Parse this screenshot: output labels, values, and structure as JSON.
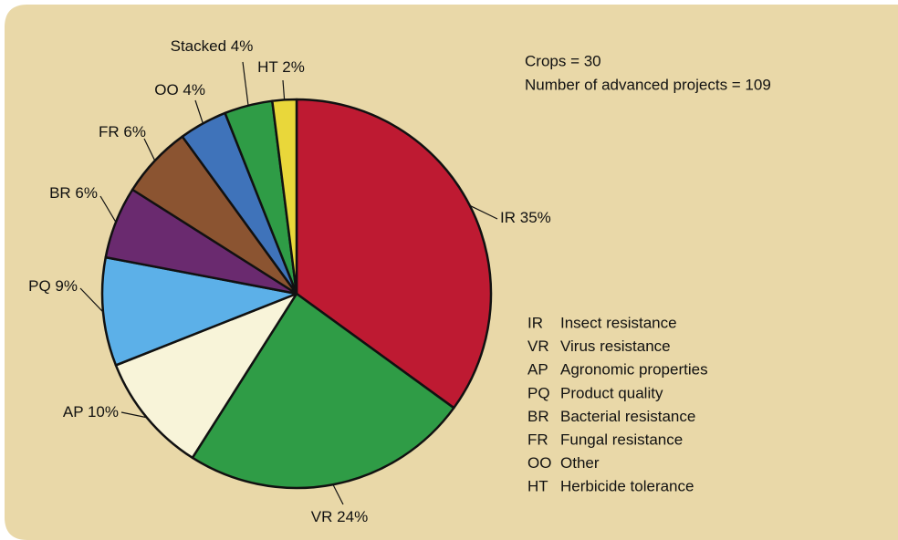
{
  "chart_data": {
    "type": "pie",
    "categories": [
      "IR",
      "VR",
      "AP",
      "PQ",
      "BR",
      "FR",
      "OO",
      "Stacked",
      "HT"
    ],
    "values": [
      35,
      24,
      10,
      9,
      6,
      6,
      4,
      4,
      2
    ],
    "value_labels": [
      "35%",
      "24%",
      "10%",
      "9%",
      "6%",
      "6%",
      "4%",
      "4%",
      "2%"
    ],
    "colors": [
      "#be1a32",
      "#2f9c46",
      "#f8f4d9",
      "#5cb0e8",
      "#6a2a6f",
      "#8b5431",
      "#3f73ba",
      "#2f9c46",
      "#e9d73a"
    ],
    "annotations": [
      "Crops = 30",
      "Number of advanced projects = 109"
    ],
    "legend": [
      {
        "code": "IR",
        "label": "Insect resistance"
      },
      {
        "code": "VR",
        "label": "Virus resistance"
      },
      {
        "code": "AP",
        "label": "Agronomic properties"
      },
      {
        "code": "PQ",
        "label": "Product quality"
      },
      {
        "code": "BR",
        "label": "Bacterial resistance"
      },
      {
        "code": "FR",
        "label": "Fungal resistance"
      },
      {
        "code": "OO",
        "label": "Other"
      },
      {
        "code": "HT",
        "label": "Herbicide tolerance"
      }
    ]
  }
}
